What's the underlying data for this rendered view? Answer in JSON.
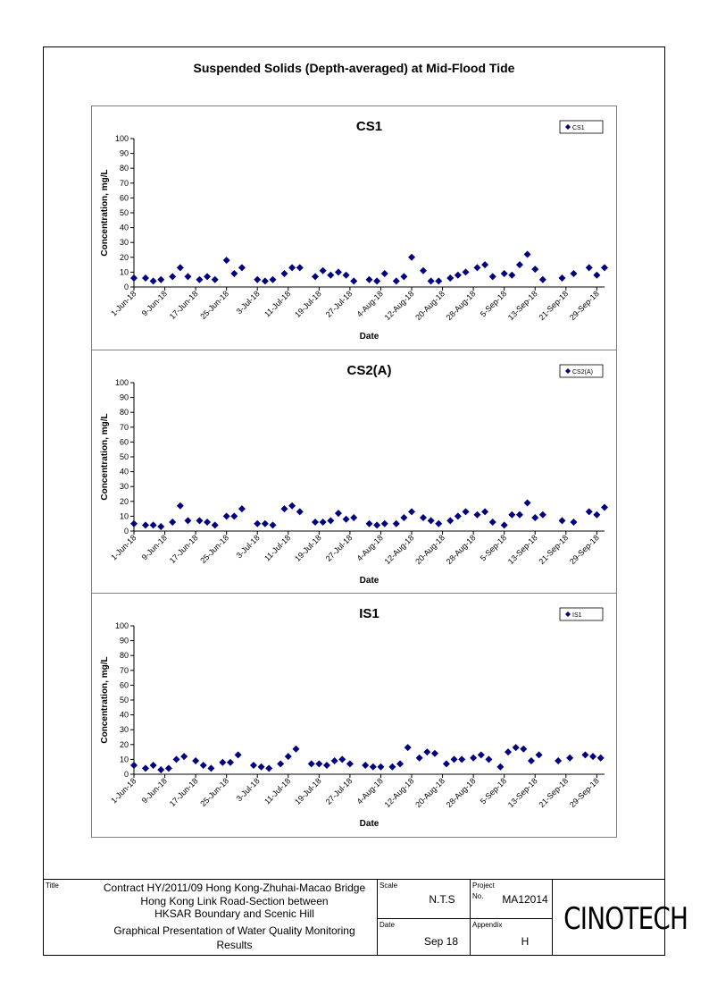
{
  "page": {
    "title": "Suspended Solids (Depth-averaged) at Mid-Flood Tide"
  },
  "colors": {
    "marker": "#000080",
    "panel_border": "#808080"
  },
  "chart_data": [
    {
      "type": "scatter",
      "title": "CS1",
      "xlabel": "Date",
      "ylabel": "Concentration, mg/L",
      "ylim": [
        0,
        100
      ],
      "yticks": [
        0,
        10,
        20,
        30,
        40,
        50,
        60,
        70,
        80,
        90,
        100
      ],
      "xticks": [
        "1-Jun-18",
        "9-Jun-18",
        "17-Jun-18",
        "25-Jun-18",
        "3-Jul-18",
        "11-Jul-18",
        "19-Jul-18",
        "27-Jul-18",
        "4-Aug-18",
        "12-Aug-18",
        "20-Aug-18",
        "28-Aug-18",
        "5-Sep-18",
        "13-Sep-18",
        "21-Sep-18",
        "29-Sep-18"
      ],
      "legend": {
        "position": "top-right"
      },
      "series": [
        {
          "name": "CS1",
          "x": [
            "1-Jun-18",
            "4-Jun-18",
            "6-Jun-18",
            "8-Jun-18",
            "11-Jun-18",
            "13-Jun-18",
            "15-Jun-18",
            "18-Jun-18",
            "20-Jun-18",
            "22-Jun-18",
            "25-Jun-18",
            "27-Jun-18",
            "29-Jun-18",
            "3-Jul-18",
            "5-Jul-18",
            "7-Jul-18",
            "10-Jul-18",
            "12-Jul-18",
            "14-Jul-18",
            "18-Jul-18",
            "20-Jul-18",
            "22-Jul-18",
            "24-Jul-18",
            "26-Jul-18",
            "28-Jul-18",
            "1-Aug-18",
            "3-Aug-18",
            "5-Aug-18",
            "8-Aug-18",
            "10-Aug-18",
            "12-Aug-18",
            "15-Aug-18",
            "17-Aug-18",
            "19-Aug-18",
            "22-Aug-18",
            "24-Aug-18",
            "26-Aug-18",
            "29-Aug-18",
            "31-Aug-18",
            "2-Sep-18",
            "5-Sep-18",
            "7-Sep-18",
            "9-Sep-18",
            "11-Sep-18",
            "13-Sep-18",
            "15-Sep-18",
            "20-Sep-18",
            "23-Sep-18",
            "27-Sep-18",
            "29-Sep-18",
            "1-Oct-18"
          ],
          "values": [
            6,
            6,
            4,
            5,
            7,
            13,
            7,
            5,
            7,
            5,
            18,
            9,
            13,
            5,
            4,
            5,
            9,
            13,
            13,
            7,
            11,
            8,
            10,
            8,
            4,
            5,
            4,
            9,
            4,
            7,
            20,
            11,
            4,
            4,
            6,
            8,
            10,
            13,
            15,
            7,
            9,
            8,
            15,
            22,
            12,
            5,
            6,
            9,
            13,
            8,
            13
          ]
        }
      ]
    },
    {
      "type": "scatter",
      "title": "CS2(A)",
      "xlabel": "Date",
      "ylabel": "Concentration, mg/L",
      "ylim": [
        0,
        100
      ],
      "yticks": [
        0,
        10,
        20,
        30,
        40,
        50,
        60,
        70,
        80,
        90,
        100
      ],
      "xticks": [
        "1-Jun-18",
        "9-Jun-18",
        "17-Jun-18",
        "25-Jun-18",
        "3-Jul-18",
        "11-Jul-18",
        "19-Jul-18",
        "27-Jul-18",
        "4-Aug-18",
        "12-Aug-18",
        "20-Aug-18",
        "28-Aug-18",
        "5-Sep-18",
        "13-Sep-18",
        "21-Sep-18",
        "29-Sep-18"
      ],
      "legend": {
        "position": "top-right"
      },
      "series": [
        {
          "name": "CS2(A)",
          "x": [
            "1-Jun-18",
            "4-Jun-18",
            "6-Jun-18",
            "8-Jun-18",
            "11-Jun-18",
            "13-Jun-18",
            "15-Jun-18",
            "18-Jun-18",
            "20-Jun-18",
            "22-Jun-18",
            "25-Jun-18",
            "27-Jun-18",
            "29-Jun-18",
            "3-Jul-18",
            "5-Jul-18",
            "7-Jul-18",
            "10-Jul-18",
            "12-Jul-18",
            "14-Jul-18",
            "18-Jul-18",
            "20-Jul-18",
            "22-Jul-18",
            "24-Jul-18",
            "26-Jul-18",
            "28-Jul-18",
            "1-Aug-18",
            "3-Aug-18",
            "5-Aug-18",
            "8-Aug-18",
            "10-Aug-18",
            "12-Aug-18",
            "15-Aug-18",
            "17-Aug-18",
            "19-Aug-18",
            "22-Aug-18",
            "24-Aug-18",
            "26-Aug-18",
            "29-Aug-18",
            "31-Aug-18",
            "2-Sep-18",
            "5-Sep-18",
            "7-Sep-18",
            "9-Sep-18",
            "11-Sep-18",
            "13-Sep-18",
            "15-Sep-18",
            "20-Sep-18",
            "23-Sep-18",
            "27-Sep-18",
            "29-Sep-18",
            "1-Oct-18"
          ],
          "values": [
            5,
            4,
            4,
            3,
            6,
            17,
            7,
            7,
            6,
            4,
            10,
            10,
            15,
            5,
            5,
            4,
            15,
            17,
            13,
            6,
            6,
            7,
            12,
            8,
            9,
            5,
            4,
            5,
            5,
            9,
            13,
            9,
            7,
            5,
            7,
            10,
            13,
            11,
            13,
            6,
            4,
            11,
            11,
            19,
            9,
            11,
            7,
            6,
            13,
            11,
            16
          ]
        }
      ]
    },
    {
      "type": "scatter",
      "title": "IS1",
      "xlabel": "Date",
      "ylabel": "Concentration, mg/L",
      "ylim": [
        0,
        100
      ],
      "yticks": [
        0,
        10,
        20,
        30,
        40,
        50,
        60,
        70,
        80,
        90,
        100
      ],
      "xticks": [
        "1-Jun-18",
        "9-Jun-18",
        "17-Jun-18",
        "25-Jun-18",
        "3-Jul-18",
        "11-Jul-18",
        "19-Jul-18",
        "27-Jul-18",
        "4-Aug-18",
        "12-Aug-18",
        "20-Aug-18",
        "28-Aug-18",
        "5-Sep-18",
        "13-Sep-18",
        "21-Sep-18",
        "29-Sep-18"
      ],
      "legend": {
        "position": "top-right"
      },
      "series": [
        {
          "name": "IS1",
          "x": [
            "1-Jun-18",
            "4-Jun-18",
            "6-Jun-18",
            "8-Jun-18",
            "10-Jun-18",
            "12-Jun-18",
            "14-Jun-18",
            "17-Jun-18",
            "19-Jun-18",
            "21-Jun-18",
            "24-Jun-18",
            "26-Jun-18",
            "28-Jun-18",
            "2-Jul-18",
            "4-Jul-18",
            "6-Jul-18",
            "9-Jul-18",
            "11-Jul-18",
            "13-Jul-18",
            "17-Jul-18",
            "19-Jul-18",
            "21-Jul-18",
            "23-Jul-18",
            "25-Jul-18",
            "27-Jul-18",
            "31-Jul-18",
            "2-Aug-18",
            "4-Aug-18",
            "7-Aug-18",
            "9-Aug-18",
            "11-Aug-18",
            "14-Aug-18",
            "16-Aug-18",
            "18-Aug-18",
            "21-Aug-18",
            "23-Aug-18",
            "25-Aug-18",
            "28-Aug-18",
            "30-Aug-18",
            "1-Sep-18",
            "4-Sep-18",
            "6-Sep-18",
            "8-Sep-18",
            "10-Sep-18",
            "12-Sep-18",
            "14-Sep-18",
            "19-Sep-18",
            "22-Sep-18",
            "26-Sep-18",
            "28-Sep-18",
            "30-Sep-18"
          ],
          "values": [
            6,
            4,
            6,
            3,
            4,
            10,
            12,
            9,
            6,
            4,
            8,
            8,
            13,
            6,
            5,
            4,
            7,
            12,
            17,
            7,
            7,
            6,
            9,
            10,
            7,
            6,
            5,
            5,
            5,
            7,
            18,
            11,
            15,
            14,
            7,
            10,
            10,
            11,
            13,
            10,
            5,
            15,
            18,
            17,
            9,
            13,
            9,
            11,
            13,
            12,
            11
          ]
        }
      ]
    }
  ],
  "title_block": {
    "title_label": "Title",
    "title_line1": "Contract HY/2011/09 Hong Kong-Zhuhai-Macao Bridge",
    "title_line2": "Hong Kong Link Road-Section between",
    "title_line3": "HKSAR Boundary and Scenic Hill",
    "title_line4": "Graphical Presentation of Water Quality Monitoring",
    "title_line5": "Results",
    "scale_label": "Scale",
    "scale_value": "N.T.S",
    "project_label": "Project",
    "project_no_label": "No.",
    "project_value": "MA12014",
    "date_label": "Date",
    "date_value": "Sep 18",
    "appendix_label": "Appendix",
    "appendix_value": "H",
    "logo_text": "CINOTECH"
  }
}
